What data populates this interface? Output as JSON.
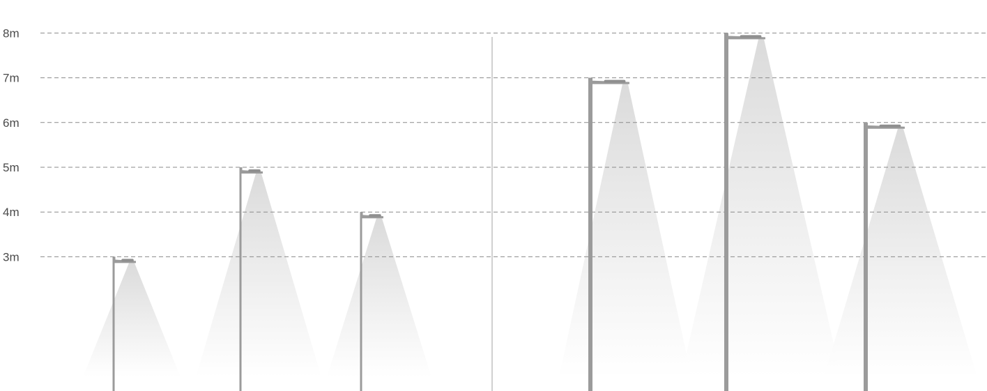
{
  "chart_data": {
    "type": "diagram",
    "units": "m",
    "y_ticks": [
      {
        "value": 8,
        "label": "8m"
      },
      {
        "value": 7,
        "label": "7m"
      },
      {
        "value": 6,
        "label": "6m"
      },
      {
        "value": 5,
        "label": "5m"
      },
      {
        "value": 4,
        "label": "4m"
      },
      {
        "value": 3,
        "label": "3m"
      }
    ],
    "ylim": [
      0,
      8.33
    ],
    "groups": [
      {
        "poles": [
          {
            "height": 3
          },
          {
            "height": 5
          },
          {
            "height": 4
          }
        ]
      },
      {
        "poles": [
          {
            "height": 7
          },
          {
            "height": 8
          },
          {
            "height": 6
          }
        ]
      }
    ],
    "colors": {
      "gridline": "#8a8a8a",
      "pole": "#9b9b9b",
      "light_beam": "#dcdcdc",
      "text": "#4a4a4a"
    }
  }
}
